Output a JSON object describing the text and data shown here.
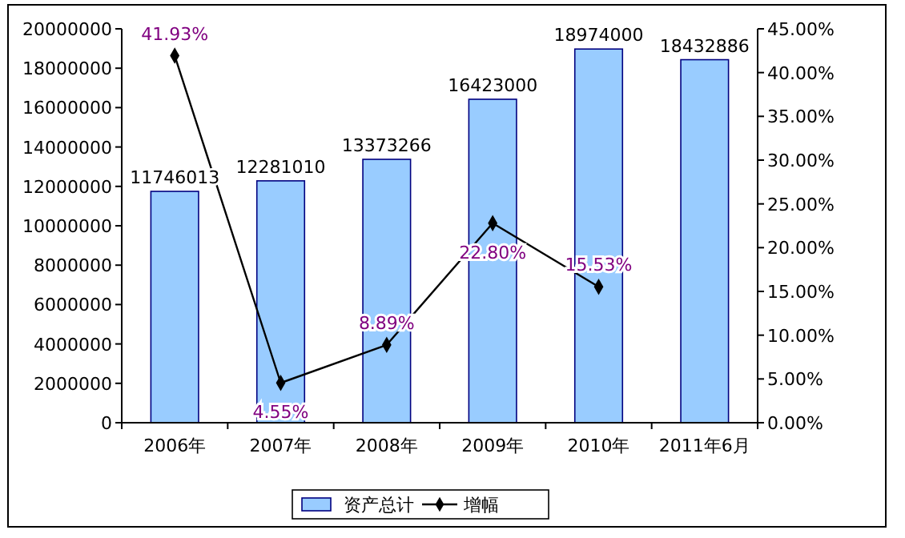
{
  "chart_data": {
    "type": "bar",
    "categories": [
      "2006年",
      "2007年",
      "2008年",
      "2009年",
      "2010年",
      "2011年6月"
    ],
    "series": [
      {
        "name": "资产总计",
        "color": "#99ccff",
        "values": [
          11746013,
          12281010,
          13373266,
          16423000,
          18974000,
          18432886
        ],
        "value_labels": [
          "11746013",
          "12281010",
          "13373266",
          "16423000",
          "18974000",
          "18432886"
        ]
      },
      {
        "name": "增幅",
        "type": "line",
        "axis": "y2",
        "color": "#000000",
        "values": [
          41.93,
          4.55,
          8.89,
          22.8,
          15.53,
          null
        ],
        "value_labels": [
          "41.93%",
          "4.55%",
          "8.89%",
          "22.80%",
          "15.53%",
          null
        ]
      }
    ],
    "ylim": [
      0,
      20000000
    ],
    "yticks": [
      0,
      2000000,
      4000000,
      6000000,
      8000000,
      10000000,
      12000000,
      14000000,
      16000000,
      18000000,
      20000000
    ],
    "y2lim": [
      0,
      45
    ],
    "y2ticks": [
      {
        "value": 0,
        "label": "0.00%"
      },
      {
        "value": 5,
        "label": "5.00%"
      },
      {
        "value": 10,
        "label": "10.00%"
      },
      {
        "value": 15,
        "label": "15.00%"
      },
      {
        "value": 20,
        "label": "20.00%"
      },
      {
        "value": 25,
        "label": "25.00%"
      },
      {
        "value": 30,
        "label": "30.00%"
      },
      {
        "value": 35,
        "label": "35.00%"
      },
      {
        "value": 40,
        "label": "40.00%"
      },
      {
        "value": 45,
        "label": "45.00%"
      }
    ],
    "marker": "diamond",
    "line_style": "solid",
    "legend": "bottom",
    "grid": false
  }
}
